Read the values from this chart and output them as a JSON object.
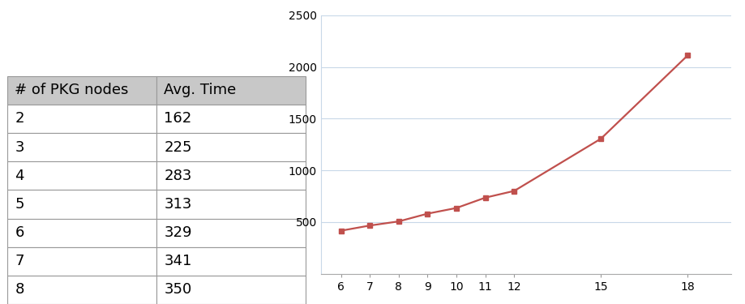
{
  "table_nodes": [
    2,
    3,
    4,
    5,
    6,
    7,
    8
  ],
  "table_times": [
    162,
    225,
    283,
    313,
    329,
    341,
    350
  ],
  "table_header": [
    "# of PKG nodes",
    "Avg. Time"
  ],
  "chart_x": [
    6,
    7,
    8,
    9,
    10,
    11,
    12,
    15,
    18
  ],
  "chart_y": [
    415,
    465,
    505,
    580,
    635,
    735,
    800,
    1305,
    2110
  ],
  "line_color": "#c0504d",
  "marker": "s",
  "marker_size": 5,
  "ylim": [
    0,
    2500
  ],
  "yticks": [
    0,
    500,
    1000,
    1500,
    2000,
    2500
  ],
  "xticks": [
    6,
    7,
    8,
    9,
    10,
    11,
    12,
    15,
    18
  ],
  "header_bg": "#c8c8c8",
  "cell_bg": "#ffffff",
  "border_color": "#999999",
  "background_color": "#ffffff",
  "table_fontsize": 13,
  "tick_fontsize": 10,
  "grid_color": "#c8d8e8",
  "line_width": 1.6
}
